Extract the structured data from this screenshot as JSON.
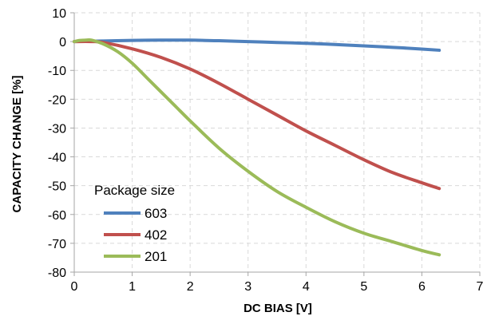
{
  "chart_data": {
    "type": "line",
    "title": "",
    "xlabel": "DC BIAS [V]",
    "ylabel": "CAPACITY CHANGE [%]",
    "xlim": [
      0,
      7
    ],
    "ylim": [
      -80,
      10
    ],
    "xticks": [
      0,
      1,
      2,
      3,
      4,
      5,
      6,
      7
    ],
    "yticks": [
      10,
      0,
      -10,
      -20,
      -30,
      -40,
      -50,
      -60,
      -70,
      -80
    ],
    "grid": true,
    "legend_title": "Package size",
    "legend_position": "lower-left",
    "series": [
      {
        "name": "603",
        "color": "#4f81bd",
        "x": [
          0,
          0.5,
          1,
          1.5,
          2,
          2.5,
          3,
          3.5,
          4,
          4.5,
          5,
          5.5,
          6,
          6.3
        ],
        "y": [
          0,
          0.2,
          0.4,
          0.5,
          0.5,
          0.3,
          0,
          -0.3,
          -0.6,
          -1,
          -1.5,
          -2,
          -2.6,
          -3
        ]
      },
      {
        "name": "402",
        "color": "#c0504d",
        "x": [
          0,
          0.3,
          0.5,
          1,
          1.5,
          2,
          2.5,
          3,
          3.5,
          4,
          4.5,
          5,
          5.5,
          6,
          6.3
        ],
        "y": [
          0,
          0,
          -0.3,
          -2.5,
          -5.5,
          -9.5,
          -14.5,
          -20,
          -25.5,
          -31,
          -36,
          -41,
          -45.5,
          -49,
          -51
        ]
      },
      {
        "name": "201",
        "color": "#9bbb59",
        "x": [
          0,
          0.1,
          0.2,
          0.3,
          0.5,
          0.75,
          1,
          1.25,
          1.5,
          1.75,
          2,
          2.5,
          3,
          3.5,
          4,
          4.5,
          5,
          5.5,
          6,
          6.3
        ],
        "y": [
          0,
          0.4,
          0.5,
          0.5,
          -0.8,
          -3.5,
          -7.5,
          -12.5,
          -17.5,
          -22.5,
          -27.5,
          -37,
          -45,
          -52,
          -57.5,
          -62.5,
          -66.5,
          -69.5,
          -72.5,
          -74
        ]
      }
    ]
  }
}
